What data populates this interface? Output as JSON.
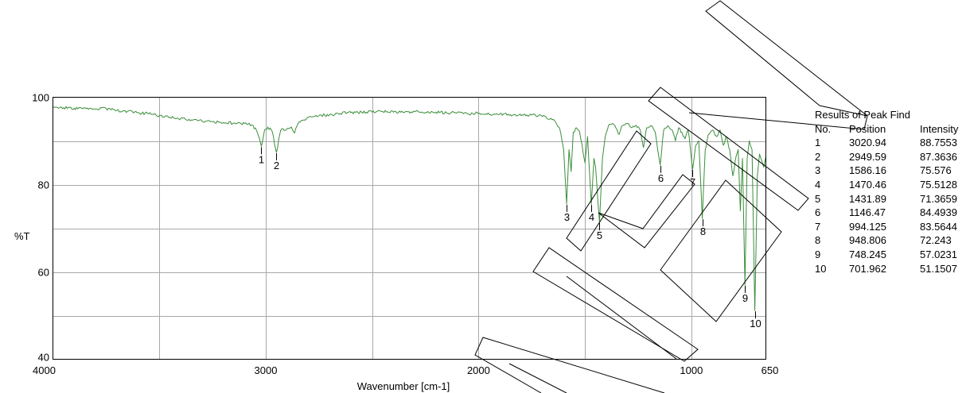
{
  "chart_data": {
    "type": "line",
    "xlabel": "Wavenumber [cm-1]",
    "ylabel": "%T",
    "xlim": [
      4000,
      650
    ],
    "ylim": [
      40,
      100
    ],
    "x_ticks": [
      4000,
      3000,
      2000,
      1000,
      650
    ],
    "y_ticks": [
      100,
      80,
      60,
      40
    ],
    "grid": true,
    "line_color": "#3b8e3b",
    "marker_color": "#000000",
    "series": [
      {
        "points": [
          [
            4000,
            97.8
          ],
          [
            3950,
            97.6
          ],
          [
            3900,
            97.5
          ],
          [
            3850,
            97.6
          ],
          [
            3800,
            97.3
          ],
          [
            3750,
            97.4
          ],
          [
            3700,
            97.0
          ],
          [
            3650,
            96.8
          ],
          [
            3600,
            96.5
          ],
          [
            3550,
            96.2
          ],
          [
            3500,
            95.8
          ],
          [
            3450,
            95.4
          ],
          [
            3400,
            95.1
          ],
          [
            3350,
            94.8
          ],
          [
            3300,
            94.6
          ],
          [
            3250,
            94.4
          ],
          [
            3200,
            94.2
          ],
          [
            3150,
            94.1
          ],
          [
            3100,
            94.0
          ],
          [
            3060,
            93.6
          ],
          [
            3040,
            92.0
          ],
          [
            3020.94,
            88.7553
          ],
          [
            3005,
            92.6
          ],
          [
            2990,
            93.2
          ],
          [
            2970,
            92.2
          ],
          [
            2949.59,
            87.3636
          ],
          [
            2930,
            92.4
          ],
          [
            2900,
            92.8
          ],
          [
            2880,
            93.2
          ],
          [
            2865,
            91.8
          ],
          [
            2850,
            93.8
          ],
          [
            2820,
            94.8
          ],
          [
            2780,
            95.5
          ],
          [
            2750,
            95.8
          ],
          [
            2700,
            96.0
          ],
          [
            2650,
            96.3
          ],
          [
            2600,
            96.5
          ],
          [
            2550,
            96.6
          ],
          [
            2500,
            96.6
          ],
          [
            2450,
            96.7
          ],
          [
            2400,
            96.6
          ],
          [
            2350,
            96.5
          ],
          [
            2300,
            96.7
          ],
          [
            2250,
            96.5
          ],
          [
            2200,
            96.6
          ],
          [
            2150,
            96.4
          ],
          [
            2100,
            96.5
          ],
          [
            2050,
            96.2
          ],
          [
            2000,
            96.4
          ],
          [
            1950,
            96.1
          ],
          [
            1900,
            96.2
          ],
          [
            1850,
            96.0
          ],
          [
            1800,
            95.8
          ],
          [
            1750,
            95.9
          ],
          [
            1700,
            95.6
          ],
          [
            1660,
            95.2
          ],
          [
            1640,
            94.5
          ],
          [
            1620,
            93.0
          ],
          [
            1600,
            88.0
          ],
          [
            1586.16,
            75.576
          ],
          [
            1575,
            88.0
          ],
          [
            1565,
            83.0
          ],
          [
            1555,
            92.0
          ],
          [
            1540,
            93.0
          ],
          [
            1525,
            92.0
          ],
          [
            1500,
            85.0
          ],
          [
            1488,
            91.0
          ],
          [
            1470.46,
            75.5128
          ],
          [
            1458,
            86.0
          ],
          [
            1450,
            84.0
          ],
          [
            1431.89,
            71.3659
          ],
          [
            1418,
            86.0
          ],
          [
            1405,
            91.0
          ],
          [
            1390,
            93.5
          ],
          [
            1370,
            94.0
          ],
          [
            1355,
            93.0
          ],
          [
            1340,
            91.5
          ],
          [
            1325,
            93.5
          ],
          [
            1300,
            94.0
          ],
          [
            1280,
            93.0
          ],
          [
            1260,
            93.6
          ],
          [
            1240,
            92.5
          ],
          [
            1225,
            88.5
          ],
          [
            1210,
            93.0
          ],
          [
            1190,
            93.5
          ],
          [
            1170,
            92.0
          ],
          [
            1146.47,
            84.4939
          ],
          [
            1130,
            92.5
          ],
          [
            1110,
            93.5
          ],
          [
            1090,
            92.5
          ],
          [
            1075,
            90.0
          ],
          [
            1060,
            93.0
          ],
          [
            1045,
            92.0
          ],
          [
            1030,
            90.5
          ],
          [
            1015,
            92.5
          ],
          [
            994.125,
            83.5644
          ],
          [
            980,
            89.0
          ],
          [
            965,
            90.0
          ],
          [
            948.806,
            72.243
          ],
          [
            935,
            88.0
          ],
          [
            920,
            91.5
          ],
          [
            900,
            92.5
          ],
          [
            880,
            91.0
          ],
          [
            865,
            92.5
          ],
          [
            850,
            89.0
          ],
          [
            835,
            91.0
          ],
          [
            820,
            88.0
          ],
          [
            805,
            82.0
          ],
          [
            790,
            86.5
          ],
          [
            780,
            88.0
          ],
          [
            770,
            74.0
          ],
          [
            760,
            86.0
          ],
          [
            748.245,
            57.0231
          ],
          [
            738,
            86.0
          ],
          [
            728,
            90.0
          ],
          [
            715,
            88.0
          ],
          [
            701.962,
            51.1507
          ],
          [
            690,
            82.0
          ],
          [
            680,
            87.0
          ],
          [
            670,
            85.5
          ],
          [
            660,
            84.0
          ],
          [
            650,
            86.5
          ]
        ]
      }
    ],
    "peaks": [
      {
        "no": "1",
        "position": 3020.94,
        "intensity": 88.7553
      },
      {
        "no": "2",
        "position": 2949.59,
        "intensity": 87.3636
      },
      {
        "no": "3",
        "position": 1586.16,
        "intensity": 75.576
      },
      {
        "no": "4",
        "position": 1470.46,
        "intensity": 75.5128
      },
      {
        "no": "5",
        "position": 1431.89,
        "intensity": 71.3659
      },
      {
        "no": "6",
        "position": 1146.47,
        "intensity": 84.4939
      },
      {
        "no": "7",
        "position": 994.125,
        "intensity": 83.5644
      },
      {
        "no": "8",
        "position": 948.806,
        "intensity": 72.243
      },
      {
        "no": "9",
        "position": 748.245,
        "intensity": 57.0231
      },
      {
        "no": "10",
        "position": 701.962,
        "intensity": 51.1507
      }
    ]
  },
  "peak_table": {
    "title": "Results of Peak Find",
    "headers": [
      "No.",
      "Position",
      "Intensity"
    ],
    "rows": [
      [
        "1",
        "3020.94",
        "88.7553"
      ],
      [
        "2",
        "2949.59",
        "87.3636"
      ],
      [
        "3",
        "1586.16",
        "75.576"
      ],
      [
        "4",
        "1470.46",
        "75.5128"
      ],
      [
        "5",
        "1431.89",
        "71.3659"
      ],
      [
        "6",
        "1146.47",
        "84.4939"
      ],
      [
        "7",
        "994.125",
        "83.5644"
      ],
      [
        "8",
        "948.806",
        "72.243"
      ],
      [
        "9",
        "748.245",
        "57.0231"
      ],
      [
        "10",
        "701.962",
        "51.1507"
      ]
    ]
  }
}
